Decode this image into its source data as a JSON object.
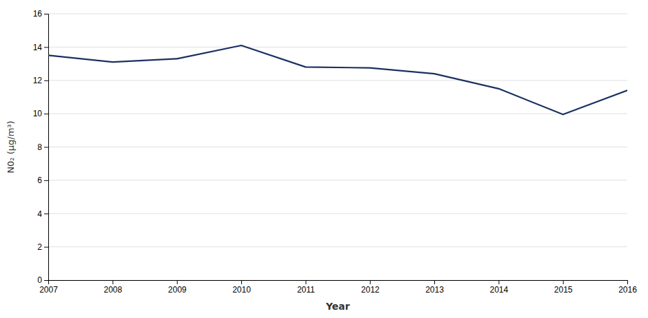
{
  "chart_data": {
    "type": "line",
    "x": [
      2007,
      2008,
      2009,
      2010,
      2011,
      2012,
      2013,
      2014,
      2015,
      2016
    ],
    "values": [
      13.5,
      13.1,
      13.3,
      14.1,
      12.8,
      12.75,
      12.4,
      11.5,
      9.95,
      11.4
    ],
    "color": "#1a3060",
    "xlabel": "Year",
    "ylabel": "N0₂ (μg/m³)",
    "xlim": [
      2007,
      2016
    ],
    "ylim": [
      0,
      16
    ],
    "xticks": [
      2007,
      2008,
      2009,
      2010,
      2011,
      2012,
      2013,
      2014,
      2015,
      2016
    ],
    "yticks": [
      0,
      2,
      4,
      6,
      8,
      10,
      12,
      14,
      16
    ],
    "grid": true
  }
}
